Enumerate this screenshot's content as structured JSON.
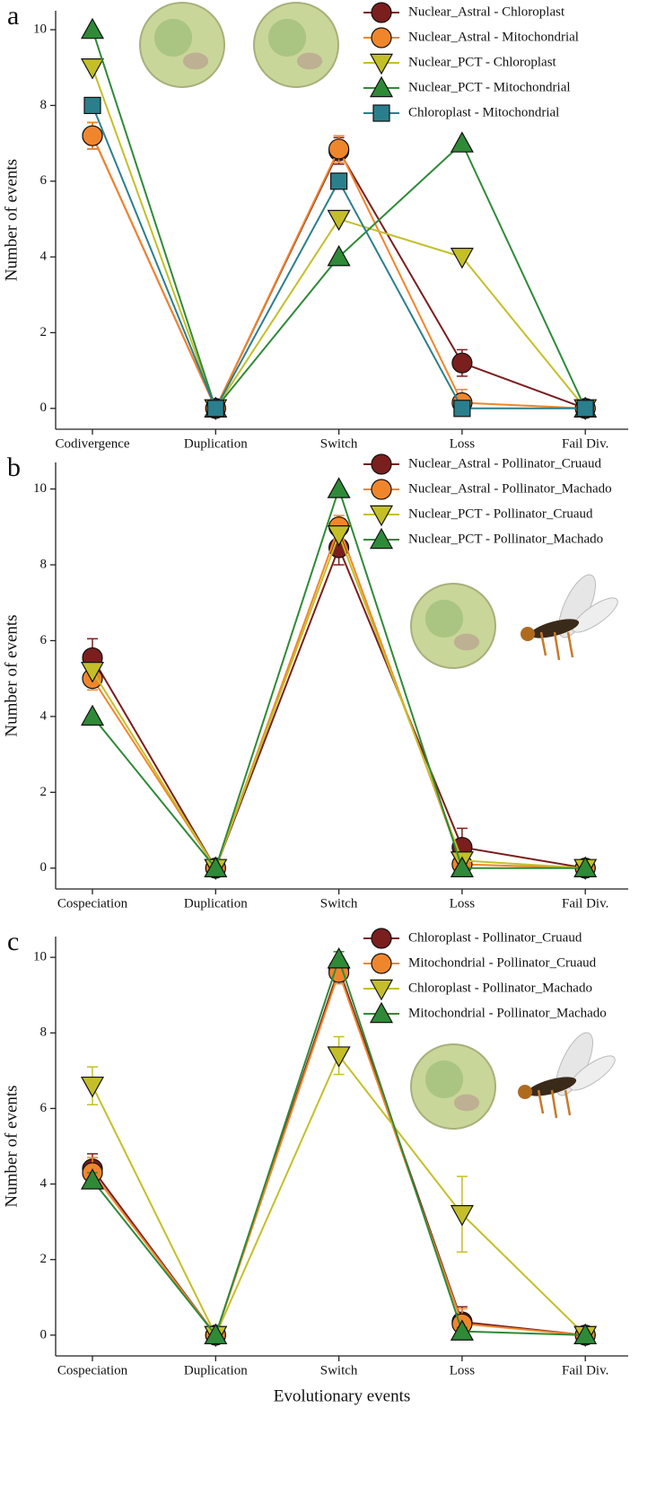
{
  "chart_data": [
    {
      "type": "line",
      "panel_label": "a",
      "ylabel": "Number of events",
      "categories": [
        "Codivergence",
        "Duplication",
        "Switch",
        "Loss",
        "Fail Div."
      ],
      "ylim": [
        -0.55,
        10.5
      ],
      "yticks": [
        0,
        2,
        4,
        6,
        8,
        10
      ],
      "legend": "upper right",
      "series": [
        {
          "name": "Nuclear_Astral - Chloroplast",
          "color": "#7a1e1e",
          "marker": "circle",
          "values": [
            7.2,
            0,
            6.8,
            1.2,
            0
          ],
          "errors": [
            0.35,
            0,
            0.35,
            0.35,
            0
          ]
        },
        {
          "name": "Nuclear_Astral - Mitochondrial",
          "color": "#f0862c",
          "marker": "circle",
          "values": [
            7.2,
            0,
            6.85,
            0.15,
            0
          ],
          "errors": [
            0.35,
            0,
            0.35,
            0.35,
            0
          ]
        },
        {
          "name": "Nuclear_PCT - Chloroplast",
          "color": "#c4bf28",
          "marker": "triangle-down",
          "values": [
            9,
            0,
            5,
            4,
            0
          ]
        },
        {
          "name": "Nuclear_PCT - Mitochondrial",
          "color": "#2f8a38",
          "marker": "triangle-up",
          "values": [
            10,
            0,
            4,
            7,
            0
          ]
        },
        {
          "name": "Chloroplast - Mitochondrial",
          "color": "#2a7f8c",
          "marker": "square",
          "values": [
            8,
            0,
            6,
            0,
            0
          ]
        }
      ]
    },
    {
      "type": "line",
      "panel_label": "b",
      "ylabel": "Number of events",
      "categories": [
        "Cospeciation",
        "Duplication",
        "Switch",
        "Loss",
        "Fail Div."
      ],
      "ylim": [
        -0.55,
        10.7
      ],
      "yticks": [
        0,
        2,
        4,
        6,
        8,
        10
      ],
      "legend": "upper right",
      "series": [
        {
          "name": "Nuclear_Astral - Pollinator_Cruaud",
          "color": "#7a1e1e",
          "marker": "circle",
          "values": [
            5.55,
            0,
            8.45,
            0.55,
            0
          ],
          "errors": [
            0.5,
            0,
            0.45,
            0.5,
            0
          ]
        },
        {
          "name": "Nuclear_Astral - Pollinator_Machado",
          "color": "#f0862c",
          "marker": "circle",
          "values": [
            5.0,
            0,
            9.0,
            0.1,
            0
          ],
          "errors": [
            0.3,
            0,
            0.3,
            0.2,
            0
          ]
        },
        {
          "name": "Nuclear_PCT - Pollinator_Cruaud",
          "color": "#c4bf28",
          "marker": "triangle-down",
          "values": [
            5.2,
            0,
            8.8,
            0.2,
            0
          ]
        },
        {
          "name": "Nuclear_PCT - Pollinator_Machado",
          "color": "#2f8a38",
          "marker": "triangle-up",
          "values": [
            4,
            0,
            10,
            0,
            0
          ]
        }
      ]
    },
    {
      "type": "line",
      "panel_label": "c",
      "ylabel": "Number of events",
      "xlabel": "Evolutionary events",
      "categories": [
        "Cospeciation",
        "Duplication",
        "Switch",
        "Loss",
        "Fail Div."
      ],
      "ylim": [
        -0.55,
        10.55
      ],
      "yticks": [
        0,
        2,
        4,
        6,
        8,
        10
      ],
      "legend": "upper right",
      "series": [
        {
          "name": "Chloroplast - Pollinator_Cruaud",
          "color": "#7a1e1e",
          "marker": "circle",
          "values": [
            4.4,
            0,
            9.7,
            0.35,
            0
          ],
          "errors": [
            0.4,
            0,
            0.3,
            0.4,
            0
          ]
        },
        {
          "name": "Mitochondrial - Pollinator_Cruaud",
          "color": "#f0862c",
          "marker": "circle",
          "values": [
            4.3,
            0,
            9.6,
            0.3,
            0
          ],
          "errors": [
            0.4,
            0,
            0.3,
            0.4,
            0
          ]
        },
        {
          "name": "Chloroplast - Pollinator_Machado",
          "color": "#c4bf28",
          "marker": "triangle-down",
          "values": [
            6.6,
            0,
            7.4,
            3.2,
            0
          ],
          "errors": [
            0.5,
            0,
            0.5,
            1.0,
            0
          ]
        },
        {
          "name": "Mitochondrial - Pollinator_Machado",
          "color": "#2f8a38",
          "marker": "triangle-up",
          "values": [
            4.1,
            0,
            9.95,
            0.1,
            0
          ],
          "errors": [
            0.2,
            0,
            0.2,
            0.1,
            0
          ]
        }
      ]
    }
  ]
}
